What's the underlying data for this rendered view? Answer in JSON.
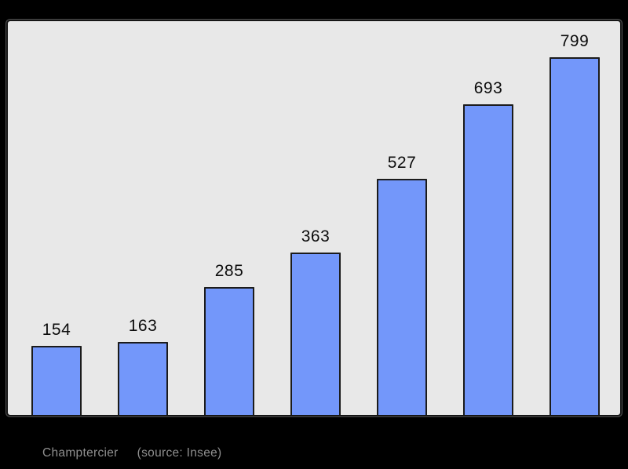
{
  "chart_data": {
    "type": "bar",
    "values": [
      154,
      163,
      285,
      363,
      527,
      693,
      799
    ],
    "data_labels": [
      "154",
      "163",
      "285",
      "363",
      "527",
      "693",
      "799"
    ],
    "title": "",
    "xlabel": "",
    "ylabel": "",
    "ylim": [
      0,
      880
    ],
    "grid": false,
    "legend": false,
    "axis_tick_labels_visible": false,
    "bar_color": "#7397fa",
    "bar_border_color": "#1b1b1b",
    "panel_background": "#e8e8e8",
    "panel_border_color": "#161616",
    "outer_background": "#000000",
    "label_color": "#0c0c0c"
  },
  "footer": {
    "commune": "Champtercier",
    "source": "(source: Insee)",
    "text_color": "#8f8f8f"
  }
}
